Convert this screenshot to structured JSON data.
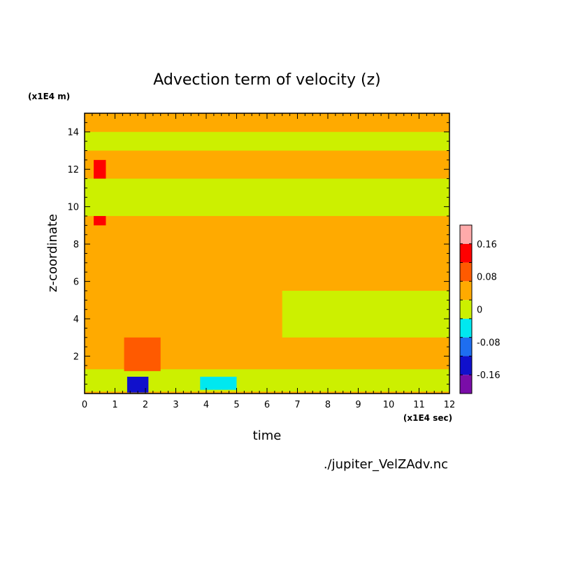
{
  "chart_data": {
    "type": "heatmap",
    "title": "Advection term of velocity (z)",
    "xlabel": "time",
    "ylabel": "z-coordinate",
    "x_unit": "(x1E4 sec)",
    "y_unit": "(x1E4 m)",
    "xlim": [
      0,
      12
    ],
    "ylim": [
      0,
      15
    ],
    "x_ticks": [
      "0",
      "1",
      "2",
      "3",
      "4",
      "5",
      "6",
      "7",
      "8",
      "9",
      "10",
      "11",
      "12"
    ],
    "y_ticks": [
      "2",
      "4",
      "6",
      "8",
      "10",
      "12",
      "14"
    ],
    "colorbar": {
      "levels": [
        -0.2,
        -0.16,
        -0.12,
        -0.08,
        -0.04,
        0,
        0.04,
        0.08,
        0.12,
        0.16,
        0.2
      ],
      "labels": [
        "0.16",
        "0.08",
        "0",
        "-0.08",
        "-0.16"
      ],
      "colors": [
        "#7a0da8",
        "#1010cc",
        "#1e6ef0",
        "#00e8f0",
        "#ccf000",
        "#ffaa00",
        "#ff5a00",
        "#ff0000",
        "#ffaaaa"
      ]
    },
    "background_value_range": [
      0,
      0.04
    ],
    "regions": [
      {
        "x": [
          0,
          12
        ],
        "y": [
          0.1,
          1.3
        ],
        "value": -0.02
      },
      {
        "x": [
          1.4,
          2.1
        ],
        "y": [
          0.05,
          0.9
        ],
        "value": -0.14
      },
      {
        "x": [
          3.8,
          5.0
        ],
        "y": [
          0.2,
          0.9
        ],
        "value": -0.07
      },
      {
        "x": [
          1.3,
          2.5
        ],
        "y": [
          1.2,
          3.0
        ],
        "value": 0.06
      },
      {
        "x": [
          0.3,
          0.7
        ],
        "y": [
          9.0,
          12.5
        ],
        "value": 0.08
      },
      {
        "x": [
          0,
          12
        ],
        "y": [
          9.5,
          11.5
        ],
        "value": -0.02
      },
      {
        "x": [
          0,
          12
        ],
        "y": [
          13.0,
          14.0
        ],
        "value": -0.02
      },
      {
        "x": [
          6.5,
          12
        ],
        "y": [
          3.0,
          5.5
        ],
        "value": -0.02
      }
    ]
  },
  "source_file": "./jupiter_VelZAdv.nc"
}
